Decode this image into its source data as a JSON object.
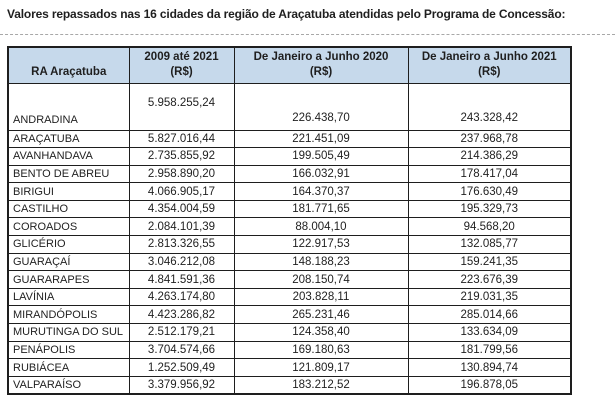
{
  "title": "Valores repassados nas 16 cidades da região de Araçatuba atendidas pelo Programa de Concessão:",
  "colors": {
    "header_bg": "#C6D9EB",
    "border": "#1E1E1E",
    "text": "#1F1F1F",
    "divider": "#A8A8A8"
  },
  "table": {
    "corner_header": "RA Araçatuba",
    "value_headers": [
      {
        "period": "2009 até 2021",
        "unit": "(R$)"
      },
      {
        "period": "De Janeiro a Junho 2020",
        "unit": "(R$)"
      },
      {
        "period": "De Janeiro a Junho 2021",
        "unit": "(R$)"
      }
    ],
    "rows": [
      {
        "city": "ANDRADINA",
        "total_2009_2021": "5.958.255,24",
        "jan_jun_2020": "226.438,70",
        "jan_jun_2021": "243.328,42"
      },
      {
        "city": "ARAÇATUBA",
        "total_2009_2021": "5.827.016,44",
        "jan_jun_2020": "221.451,09",
        "jan_jun_2021": "237.968,78"
      },
      {
        "city": "AVANHANDAVA",
        "total_2009_2021": "2.735.855,92",
        "jan_jun_2020": "199.505,49",
        "jan_jun_2021": "214.386,29"
      },
      {
        "city": "BENTO DE ABREU",
        "total_2009_2021": "2.958.890,20",
        "jan_jun_2020": "166.032,91",
        "jan_jun_2021": "178.417,04"
      },
      {
        "city": "BIRIGUI",
        "total_2009_2021": "4.066.905,17",
        "jan_jun_2020": "164.370,37",
        "jan_jun_2021": "176.630,49"
      },
      {
        "city": "CASTILHO",
        "total_2009_2021": "4.354.004,59",
        "jan_jun_2020": "181.771,65",
        "jan_jun_2021": "195.329,73"
      },
      {
        "city": "COROADOS",
        "total_2009_2021": "2.084.101,39",
        "jan_jun_2020": "88.004,10",
        "jan_jun_2021": "94.568,20"
      },
      {
        "city": "GLICÉRIO",
        "total_2009_2021": "2.813.326,55",
        "jan_jun_2020": "122.917,53",
        "jan_jun_2021": "132.085,77"
      },
      {
        "city": "GUARAÇAÍ",
        "total_2009_2021": "3.046.212,08",
        "jan_jun_2020": "148.188,23",
        "jan_jun_2021": "159.241,35"
      },
      {
        "city": "GUARARAPES",
        "total_2009_2021": "4.841.591,36",
        "jan_jun_2020": "208.150,74",
        "jan_jun_2021": "223.676,39"
      },
      {
        "city": "LAVÍNIA",
        "total_2009_2021": "4.263.174,80",
        "jan_jun_2020": "203.828,11",
        "jan_jun_2021": "219.031,35"
      },
      {
        "city": "MIRANDÓPOLIS",
        "total_2009_2021": "4.423.286,82",
        "jan_jun_2020": "265.231,46",
        "jan_jun_2021": "285.014,66"
      },
      {
        "city": "MURUTINGA DO SUL",
        "total_2009_2021": "2.512.179,21",
        "jan_jun_2020": "124.358,40",
        "jan_jun_2021": "133.634,09"
      },
      {
        "city": "PENÁPOLIS",
        "total_2009_2021": "3.704.574,66",
        "jan_jun_2020": "169.180,63",
        "jan_jun_2021": "181.799,56"
      },
      {
        "city": "RUBIÁCEA",
        "total_2009_2021": "1.252.509,49",
        "jan_jun_2020": "121.809,17",
        "jan_jun_2021": "130.894,74"
      },
      {
        "city": "VALPARAÍSO",
        "total_2009_2021": "3.379.956,92",
        "jan_jun_2020": "183.212,52",
        "jan_jun_2021": "196.878,05"
      }
    ]
  }
}
